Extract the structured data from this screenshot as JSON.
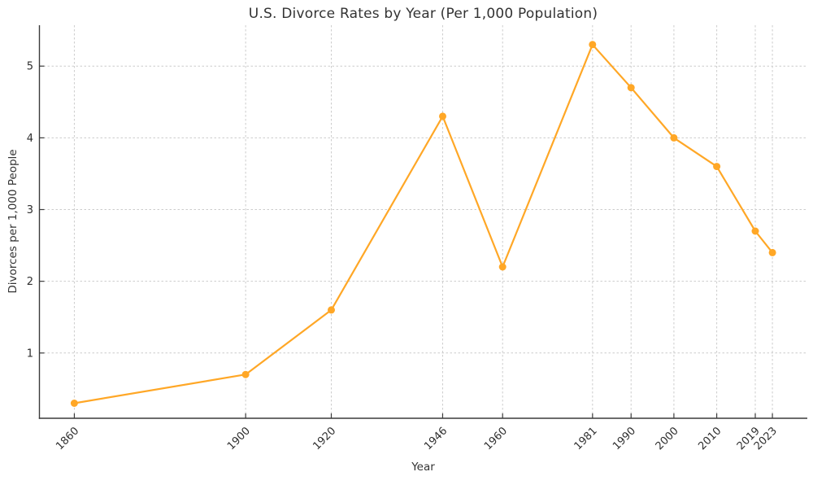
{
  "figure": {
    "background": "#ffffff"
  },
  "chart_data": {
    "type": "line",
    "title": "U.S. Divorce Rates by Year (Per 1,000 Population)",
    "xlabel": "Year",
    "ylabel": "Divorces per 1,000 People",
    "x": [
      1860,
      1900,
      1920,
      1946,
      1960,
      1981,
      1990,
      2000,
      2010,
      2019,
      2023
    ],
    "y": [
      0.3,
      0.7,
      1.6,
      4.3,
      2.2,
      5.3,
      4.7,
      4.0,
      3.6,
      2.7,
      2.4
    ],
    "xtick_labels": [
      "1860",
      "1900",
      "1920",
      "1946",
      "1960",
      "1981",
      "1990",
      "2000",
      "2010",
      "2019",
      "2023"
    ],
    "yticks": [
      1,
      2,
      3,
      4,
      5
    ],
    "xlim": [
      1851.85,
      2031.15
    ],
    "ylim": [
      0.09,
      5.57
    ],
    "xtick_rotation": 45,
    "grid": true,
    "grid_style": "dashed",
    "legend_position": "none",
    "series_name": "Divorce rate",
    "line_color": "#FFA726",
    "marker": "circle",
    "marker_size": 4.5,
    "line_width": 2.2,
    "grid_color": "#cccccc",
    "spine_color": "#3b3b3b",
    "tick_color": "#3b3b3b",
    "text_color": "#2e2e2e"
  }
}
